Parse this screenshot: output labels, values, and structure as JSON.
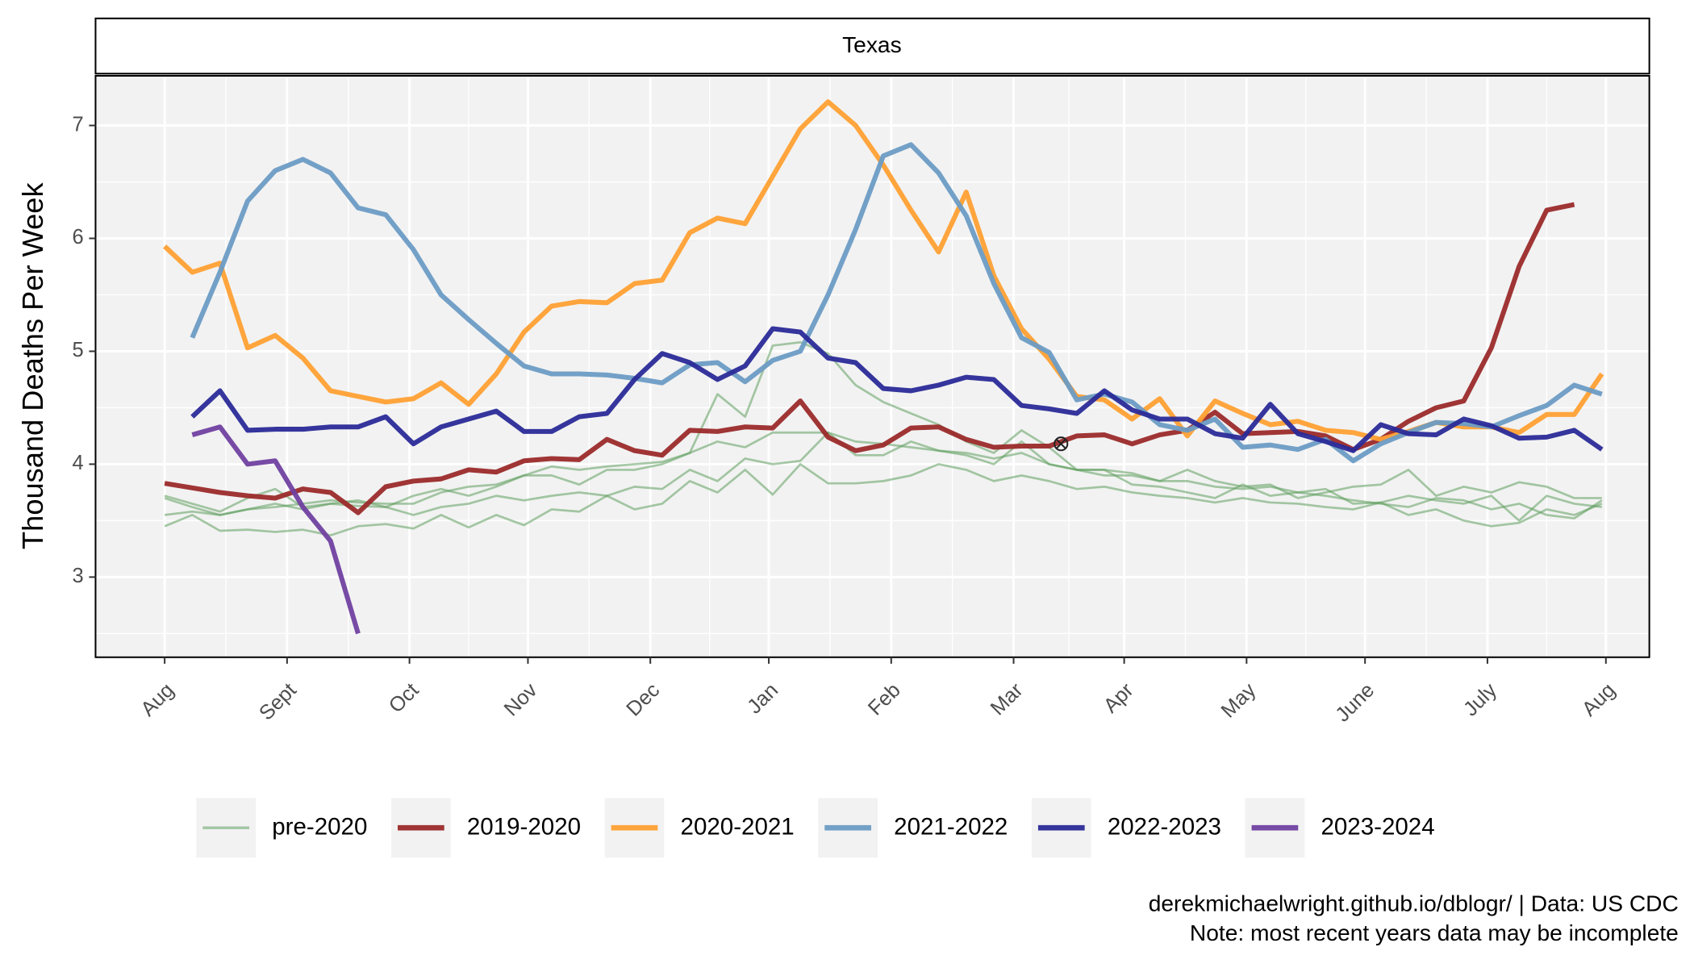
{
  "chart_data": {
    "type": "line",
    "strip": "Texas",
    "y_label": "Thousand Deaths Per Week",
    "caption": [
      "derekmichaelwright.github.io/dblogr/ | Data: US CDC",
      "Note: most recent years data may be incomplete"
    ],
    "x": [
      0,
      7,
      14,
      21,
      28,
      35,
      42,
      49,
      56,
      63,
      70,
      77,
      84,
      91,
      98,
      105,
      112,
      119,
      126,
      133,
      140,
      147,
      154,
      161,
      168,
      175,
      182,
      189,
      196,
      203,
      210,
      217,
      224,
      231,
      238,
      245,
      252,
      259,
      266,
      273,
      280,
      287,
      294,
      301,
      308,
      315,
      322,
      329,
      336,
      343,
      350,
      357,
      364
    ],
    "xlim": [
      -17.5,
      376
    ],
    "xticks": [
      {
        "value": 0,
        "label": "Aug"
      },
      {
        "value": 31,
        "label": "Sept"
      },
      {
        "value": 62,
        "label": "Oct"
      },
      {
        "value": 92,
        "label": "Nov"
      },
      {
        "value": 123,
        "label": "Dec"
      },
      {
        "value": 153,
        "label": "Jan"
      },
      {
        "value": 184,
        "label": "Feb"
      },
      {
        "value": 215,
        "label": "Mar"
      },
      {
        "value": 243,
        "label": "Apr"
      },
      {
        "value": 274,
        "label": "May"
      },
      {
        "value": 304,
        "label": "June"
      },
      {
        "value": 335,
        "label": "July"
      },
      {
        "value": 365,
        "label": "Aug"
      }
    ],
    "ylim": [
      2.29,
      7.44
    ],
    "yticks": [
      3,
      4,
      5,
      6,
      7
    ],
    "grid": true,
    "point": {
      "x": 227,
      "y": 4.18
    },
    "series": [
      {
        "name": "pre-2020",
        "color": "#5f9e5f",
        "values": [
          3.45,
          3.55,
          3.41,
          3.42,
          3.4,
          3.42,
          3.37,
          3.45,
          3.47,
          3.43,
          3.55,
          3.44,
          3.55,
          3.46,
          3.6,
          3.58,
          3.72,
          3.6,
          3.65,
          3.85,
          3.75,
          3.95,
          3.73,
          4.0,
          3.83,
          3.83,
          3.85,
          3.9,
          4.0,
          3.95,
          3.85,
          3.9,
          3.85,
          3.78,
          3.8,
          3.75,
          3.72,
          3.7,
          3.66,
          3.7,
          3.66,
          3.65,
          3.62,
          3.6,
          3.66,
          3.55,
          3.6,
          3.5,
          3.45,
          3.48,
          3.6,
          3.55,
          3.65
        ]
      },
      {
        "name": "pre-2020",
        "color": "#5f9e5f",
        "values": [
          3.7,
          3.62,
          3.55,
          3.6,
          3.65,
          3.6,
          3.65,
          3.63,
          3.62,
          3.55,
          3.62,
          3.65,
          3.72,
          3.68,
          3.72,
          3.75,
          3.72,
          3.8,
          3.78,
          3.95,
          3.85,
          4.05,
          4.0,
          4.03,
          4.28,
          4.08,
          4.08,
          4.2,
          4.12,
          4.1,
          4.05,
          4.1,
          4.0,
          3.95,
          3.9,
          3.9,
          3.85,
          3.85,
          3.8,
          3.78,
          3.8,
          3.75,
          3.72,
          3.68,
          3.65,
          3.62,
          3.7,
          3.68,
          3.6,
          3.65,
          3.55,
          3.52,
          3.68
        ]
      },
      {
        "name": "pre-2020",
        "color": "#5f9e5f",
        "values": [
          3.72,
          3.65,
          3.58,
          3.7,
          3.78,
          3.62,
          3.65,
          3.68,
          3.62,
          3.72,
          3.78,
          3.72,
          3.8,
          3.9,
          3.98,
          3.95,
          3.98,
          4.0,
          4.02,
          4.1,
          4.2,
          4.15,
          4.28,
          4.28,
          4.28,
          4.2,
          4.18,
          4.15,
          4.12,
          4.08,
          4.0,
          4.2,
          4.0,
          3.95,
          3.95,
          3.82,
          3.8,
          3.75,
          3.7,
          3.82,
          3.72,
          3.75,
          3.78,
          3.65,
          3.66,
          3.72,
          3.68,
          3.65,
          3.72,
          3.5,
          3.72,
          3.65,
          3.62
        ]
      },
      {
        "name": "pre-2020",
        "color": "#5f9e5f",
        "values": [
          3.55,
          3.58,
          3.55,
          3.6,
          3.62,
          3.65,
          3.68,
          3.66,
          3.65,
          3.65,
          3.75,
          3.8,
          3.82,
          3.9,
          3.9,
          3.82,
          3.95,
          3.95,
          4.0,
          4.1,
          4.62,
          4.42,
          5.05,
          5.08,
          4.98,
          4.7,
          4.55,
          4.45,
          4.35,
          4.2,
          4.1,
          4.3,
          4.15,
          3.95,
          3.95,
          3.92,
          3.85,
          3.95,
          3.85,
          3.8,
          3.82,
          3.7,
          3.75,
          3.8,
          3.82,
          3.95,
          3.72,
          3.8,
          3.75,
          3.84,
          3.8,
          3.7,
          3.7
        ]
      },
      {
        "name": "2019-2020",
        "color": "#9b2a2a",
        "values": [
          3.83,
          3.79,
          3.75,
          3.72,
          3.7,
          3.78,
          3.75,
          3.57,
          3.8,
          3.85,
          3.87,
          3.95,
          3.93,
          4.03,
          4.05,
          4.04,
          4.22,
          4.12,
          4.08,
          4.3,
          4.29,
          4.33,
          4.32,
          4.56,
          4.24,
          4.12,
          4.17,
          4.32,
          4.33,
          4.22,
          4.15,
          4.16,
          4.16,
          4.25,
          4.26,
          4.18,
          4.26,
          4.3,
          4.46,
          4.27,
          4.28,
          4.29,
          4.25,
          4.13,
          4.22,
          4.38,
          4.5,
          4.56,
          5.03,
          5.75,
          6.25,
          6.3,
          null
        ]
      },
      {
        "name": "2020-2021",
        "color": "#ffa033",
        "values": [
          5.93,
          5.7,
          5.78,
          5.03,
          5.14,
          4.94,
          4.65,
          4.6,
          4.55,
          4.58,
          4.72,
          4.53,
          4.8,
          5.17,
          5.4,
          5.44,
          5.43,
          5.6,
          5.63,
          6.05,
          6.18,
          6.13,
          6.55,
          6.97,
          7.21,
          7.0,
          6.65,
          6.25,
          5.88,
          6.41,
          5.67,
          5.2,
          4.93,
          4.6,
          4.57,
          4.4,
          4.58,
          4.25,
          4.56,
          4.45,
          4.35,
          4.38,
          4.3,
          4.28,
          4.22,
          4.29,
          4.37,
          4.33,
          4.33,
          4.28,
          4.44,
          4.44,
          4.8
        ]
      },
      {
        "name": "2021-2022",
        "color": "#6b9bc4",
        "values": [
          null,
          5.12,
          5.7,
          6.33,
          6.6,
          6.7,
          6.58,
          6.27,
          6.21,
          5.9,
          5.5,
          5.28,
          5.07,
          4.87,
          4.8,
          4.8,
          4.79,
          4.76,
          4.72,
          4.88,
          4.9,
          4.73,
          4.92,
          5.0,
          5.5,
          6.08,
          6.73,
          6.83,
          6.58,
          6.2,
          5.6,
          5.12,
          4.99,
          4.57,
          4.62,
          4.55,
          4.35,
          4.3,
          4.4,
          4.15,
          4.17,
          4.13,
          4.22,
          4.03,
          4.18,
          4.28,
          4.37,
          4.36,
          4.33,
          4.43,
          4.52,
          4.7,
          4.62
        ]
      },
      {
        "name": "2022-2023",
        "color": "#2a2a98",
        "values": [
          null,
          4.42,
          4.65,
          4.3,
          4.31,
          4.31,
          4.33,
          4.33,
          4.42,
          4.18,
          4.33,
          4.4,
          4.47,
          4.29,
          4.29,
          4.42,
          4.45,
          4.75,
          4.98,
          4.9,
          4.75,
          4.87,
          5.2,
          5.17,
          4.94,
          4.9,
          4.67,
          4.65,
          4.7,
          4.77,
          4.75,
          4.52,
          4.49,
          4.45,
          4.65,
          4.48,
          4.4,
          4.4,
          4.27,
          4.23,
          4.53,
          4.27,
          4.2,
          4.12,
          4.35,
          4.27,
          4.26,
          4.4,
          4.34,
          4.23,
          4.24,
          4.3,
          4.13
        ]
      },
      {
        "name": "2023-2024",
        "color": "#7040a0",
        "values": [
          null,
          4.26,
          4.33,
          4.0,
          4.03,
          3.62,
          3.32,
          2.5,
          null,
          null,
          null,
          null,
          null,
          null,
          null,
          null,
          null,
          null,
          null,
          null,
          null,
          null,
          null,
          null,
          null,
          null,
          null,
          null,
          null,
          null,
          null,
          null,
          null,
          null,
          null,
          null,
          null,
          null,
          null,
          null,
          null,
          null,
          null,
          null,
          null,
          null,
          null,
          null,
          null,
          null,
          null,
          null,
          null
        ]
      }
    ]
  }
}
